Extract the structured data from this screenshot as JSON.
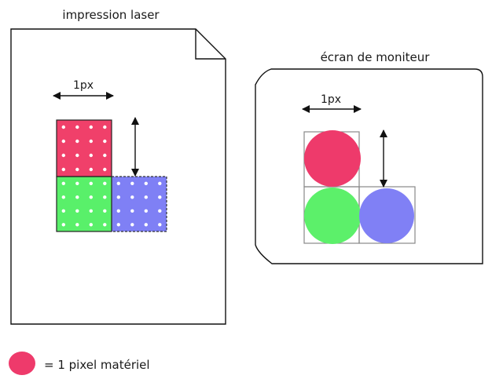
{
  "laser": {
    "title": "impression laser",
    "width_label": "1px",
    "colors": {
      "red": "#f0406a",
      "green": "#59f06a",
      "blue": "#7f80f5"
    }
  },
  "monitor": {
    "title": "écran de moniteur",
    "width_label": "1px",
    "colors": {
      "red": "#ee3a6b",
      "green": "#5cf06a",
      "blue": "#8080f5"
    }
  },
  "legend": {
    "text": "= 1 pixel matériel",
    "color": "#ee3a6b"
  }
}
